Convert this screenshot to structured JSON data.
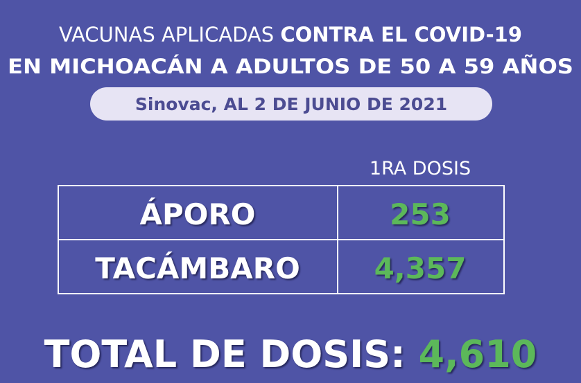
{
  "header": {
    "title_line1_regular": "VACUNAS APLICADAS",
    "title_line1_bold": "CONTRA EL COVID-19",
    "title_line2": "EN MICHOACÁN A ADULTOS DE 50 A 59 AÑOS",
    "subtitle": "Sinovac, AL 2 DE JUNIO DE 2021"
  },
  "table": {
    "column_header": "1RA DOSIS",
    "rows": [
      [
        "ÁPORO",
        "253"
      ],
      [
        "TACÁMBARO",
        "4,357"
      ]
    ]
  },
  "total": {
    "label": "TOTAL DE DOSIS:",
    "value": "4,610"
  }
}
